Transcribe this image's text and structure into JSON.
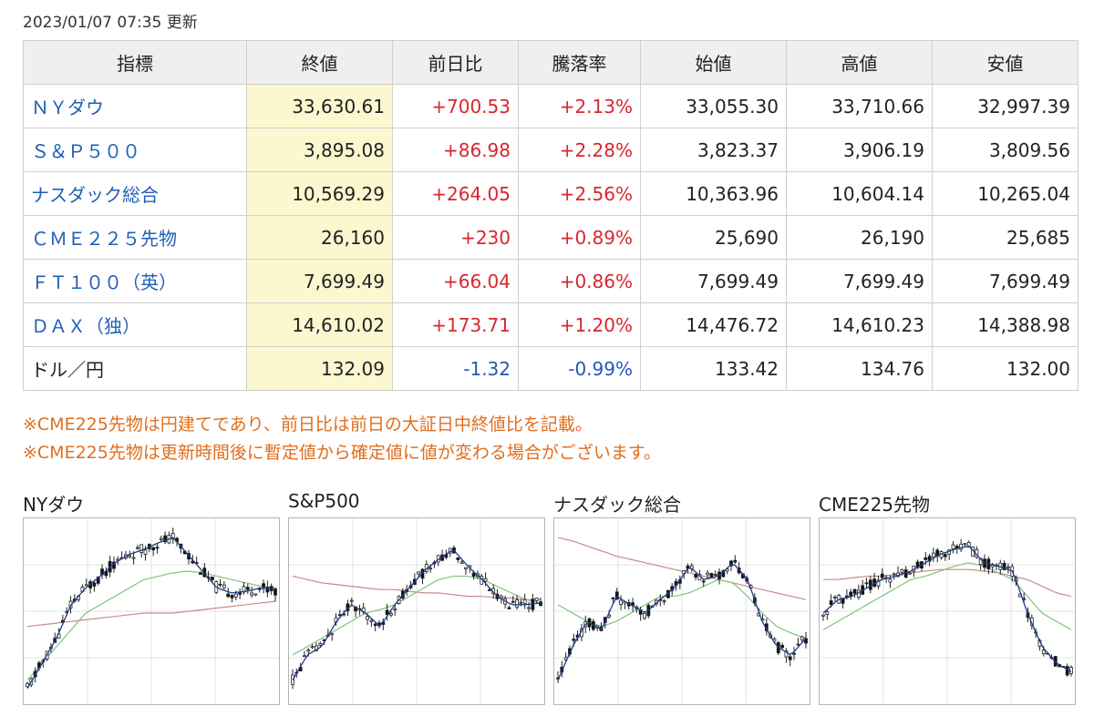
{
  "updated": "2023/01/07 07:35 更新",
  "table": {
    "headers": [
      "指標",
      "終値",
      "前日比",
      "騰落率",
      "始値",
      "高値",
      "安値"
    ],
    "rows": [
      {
        "name": "ＮＹダウ",
        "link": true,
        "close": "33,630.61",
        "change": "+700.53",
        "rate": "+2.13%",
        "open": "33,055.30",
        "high": "33,710.66",
        "low": "32,997.39",
        "dir": "pos"
      },
      {
        "name": "Ｓ＆Ｐ５００",
        "link": true,
        "close": "3,895.08",
        "change": "+86.98",
        "rate": "+2.28%",
        "open": "3,823.37",
        "high": "3,906.19",
        "low": "3,809.56",
        "dir": "pos"
      },
      {
        "name": "ナスダック総合",
        "link": true,
        "close": "10,569.29",
        "change": "+264.05",
        "rate": "+2.56%",
        "open": "10,363.96",
        "high": "10,604.14",
        "low": "10,265.04",
        "dir": "pos"
      },
      {
        "name": "ＣＭＥ２２５先物",
        "link": true,
        "close": "26,160",
        "change": "+230",
        "rate": "+0.89%",
        "open": "25,690",
        "high": "26,190",
        "low": "25,685",
        "dir": "pos"
      },
      {
        "name": "ＦＴ１００（英）",
        "link": true,
        "close": "7,699.49",
        "change": "+66.04",
        "rate": "+0.86%",
        "open": "7,699.49",
        "high": "7,699.49",
        "low": "7,699.49",
        "dir": "pos"
      },
      {
        "name": "ＤＡＸ（独）",
        "link": true,
        "close": "14,610.02",
        "change": "+173.71",
        "rate": "+1.20%",
        "open": "14,476.72",
        "high": "14,610.23",
        "low": "14,388.98",
        "dir": "pos"
      },
      {
        "name": "ドル／円",
        "link": false,
        "close": "132.09",
        "change": "-1.32",
        "rate": "-0.99%",
        "open": "133.42",
        "high": "134.76",
        "low": "132.00",
        "dir": "neg"
      }
    ]
  },
  "notes": [
    "※CME225先物は円建てであり、前日比は前日の大証日中終値比を記載。",
    "※CME225先物は更新時間後に暫定値から確定値に値が変わる場合がございます。"
  ],
  "charts": [
    {
      "title": "NYダウ",
      "seed": 11,
      "path": [
        0.05,
        0.2,
        0.35,
        0.55,
        0.65,
        0.72,
        0.8,
        0.85,
        0.88,
        0.92,
        0.95,
        0.85,
        0.75,
        0.65,
        0.62,
        0.63,
        0.65,
        0.64
      ],
      "ma_long": [
        0.1,
        0.2,
        0.3,
        0.4,
        0.5,
        0.55,
        0.6,
        0.65,
        0.7,
        0.72,
        0.74,
        0.75,
        0.74,
        0.72,
        0.7,
        0.68,
        0.66,
        0.65
      ],
      "ma_very_long": [
        0.42,
        0.43,
        0.44,
        0.45,
        0.46,
        0.47,
        0.48,
        0.49,
        0.5,
        0.5,
        0.5,
        0.51,
        0.52,
        0.53,
        0.54,
        0.55,
        0.56,
        0.57
      ]
    },
    {
      "title": "S&P500",
      "seed": 23,
      "path": [
        0.1,
        0.25,
        0.3,
        0.45,
        0.55,
        0.5,
        0.42,
        0.55,
        0.65,
        0.75,
        0.82,
        0.88,
        0.78,
        0.7,
        0.6,
        0.55,
        0.55,
        0.56
      ],
      "ma_long": [
        0.25,
        0.3,
        0.35,
        0.4,
        0.45,
        0.5,
        0.52,
        0.55,
        0.6,
        0.65,
        0.7,
        0.72,
        0.72,
        0.7,
        0.66,
        0.62,
        0.58,
        0.56
      ],
      "ma_very_long": [
        0.72,
        0.7,
        0.68,
        0.67,
        0.66,
        0.65,
        0.64,
        0.64,
        0.63,
        0.62,
        0.62,
        0.61,
        0.6,
        0.6,
        0.59,
        0.59,
        0.58,
        0.58
      ]
    },
    {
      "title": "ナスダック総合",
      "seed": 37,
      "path": [
        0.1,
        0.3,
        0.45,
        0.4,
        0.6,
        0.55,
        0.5,
        0.58,
        0.65,
        0.78,
        0.7,
        0.72,
        0.8,
        0.7,
        0.45,
        0.3,
        0.25,
        0.35
      ],
      "ma_long": [
        0.55,
        0.5,
        0.45,
        0.42,
        0.45,
        0.5,
        0.55,
        0.6,
        0.6,
        0.62,
        0.66,
        0.7,
        0.68,
        0.6,
        0.5,
        0.42,
        0.38,
        0.35
      ],
      "ma_very_long": [
        0.95,
        0.93,
        0.9,
        0.87,
        0.84,
        0.82,
        0.8,
        0.78,
        0.76,
        0.74,
        0.72,
        0.7,
        0.68,
        0.66,
        0.64,
        0.62,
        0.6,
        0.58
      ]
    },
    {
      "title": "CME225先物",
      "seed": 51,
      "path": [
        0.5,
        0.58,
        0.6,
        0.65,
        0.7,
        0.72,
        0.75,
        0.8,
        0.85,
        0.88,
        0.9,
        0.8,
        0.78,
        0.75,
        0.5,
        0.3,
        0.2,
        0.15
      ],
      "ma_long": [
        0.4,
        0.45,
        0.5,
        0.55,
        0.6,
        0.65,
        0.7,
        0.72,
        0.75,
        0.78,
        0.8,
        0.78,
        0.74,
        0.7,
        0.6,
        0.5,
        0.45,
        0.4
      ],
      "ma_very_long": [
        0.7,
        0.7,
        0.71,
        0.72,
        0.72,
        0.73,
        0.74,
        0.75,
        0.76,
        0.76,
        0.76,
        0.75,
        0.74,
        0.72,
        0.7,
        0.66,
        0.62,
        0.6
      ]
    }
  ],
  "colors": {
    "link": "#1f5fb5",
    "positive": "#d8262d",
    "negative": "#2755b8",
    "note": "#e06e1f",
    "close_bg": "#fbf7cf",
    "ma_short": "#1e3c8c",
    "ma_mid": "#7fc47f",
    "ma_long": "#c98b8b"
  }
}
